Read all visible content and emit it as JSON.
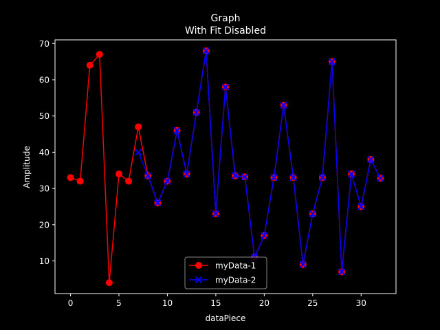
{
  "chart_data": {
    "type": "line",
    "title": "Graph",
    "subtitle": "With Fit Disabled",
    "xlabel": "dataPiece",
    "ylabel": "Amplitude",
    "xlim": [
      -1.6,
      33.6
    ],
    "ylim": [
      1.0,
      71.0
    ],
    "xticks": [
      0,
      5,
      10,
      15,
      20,
      25,
      30
    ],
    "yticks": [
      10,
      20,
      30,
      40,
      50,
      60,
      70
    ],
    "grid": false,
    "legend_position": "bottom-center",
    "series": [
      {
        "name": "myData-1",
        "color": "#ff0000",
        "marker": "circle",
        "x": [
          0,
          1,
          2,
          3,
          4,
          5,
          6,
          7,
          8,
          9,
          10,
          11,
          12,
          13,
          14,
          15,
          16,
          17,
          18,
          19,
          20,
          21,
          22,
          23,
          24,
          25,
          26,
          27,
          28,
          29,
          30,
          31,
          32
        ],
        "y": [
          33,
          32,
          64,
          67,
          4,
          34,
          32,
          47,
          33.5,
          26,
          32,
          46,
          34,
          51,
          68,
          23,
          58,
          33.5,
          33.2,
          11,
          17,
          33,
          53,
          33,
          9,
          23,
          33,
          65,
          7,
          34,
          25,
          38,
          32.8
        ]
      },
      {
        "name": "myData-2",
        "color": "#0000ff",
        "marker": "x",
        "x": [
          7,
          8,
          9,
          10,
          11,
          12,
          13,
          14,
          15,
          16,
          17,
          18,
          19,
          20,
          21,
          22,
          23,
          24,
          25,
          26,
          27,
          28,
          29,
          30,
          31,
          32
        ],
        "y": [
          40,
          33.5,
          26,
          32,
          46,
          34,
          51,
          68,
          23,
          58,
          33.5,
          33.2,
          11,
          17,
          33,
          53,
          33,
          9,
          23,
          33,
          65,
          7,
          34,
          25,
          38,
          32.8
        ]
      }
    ]
  }
}
